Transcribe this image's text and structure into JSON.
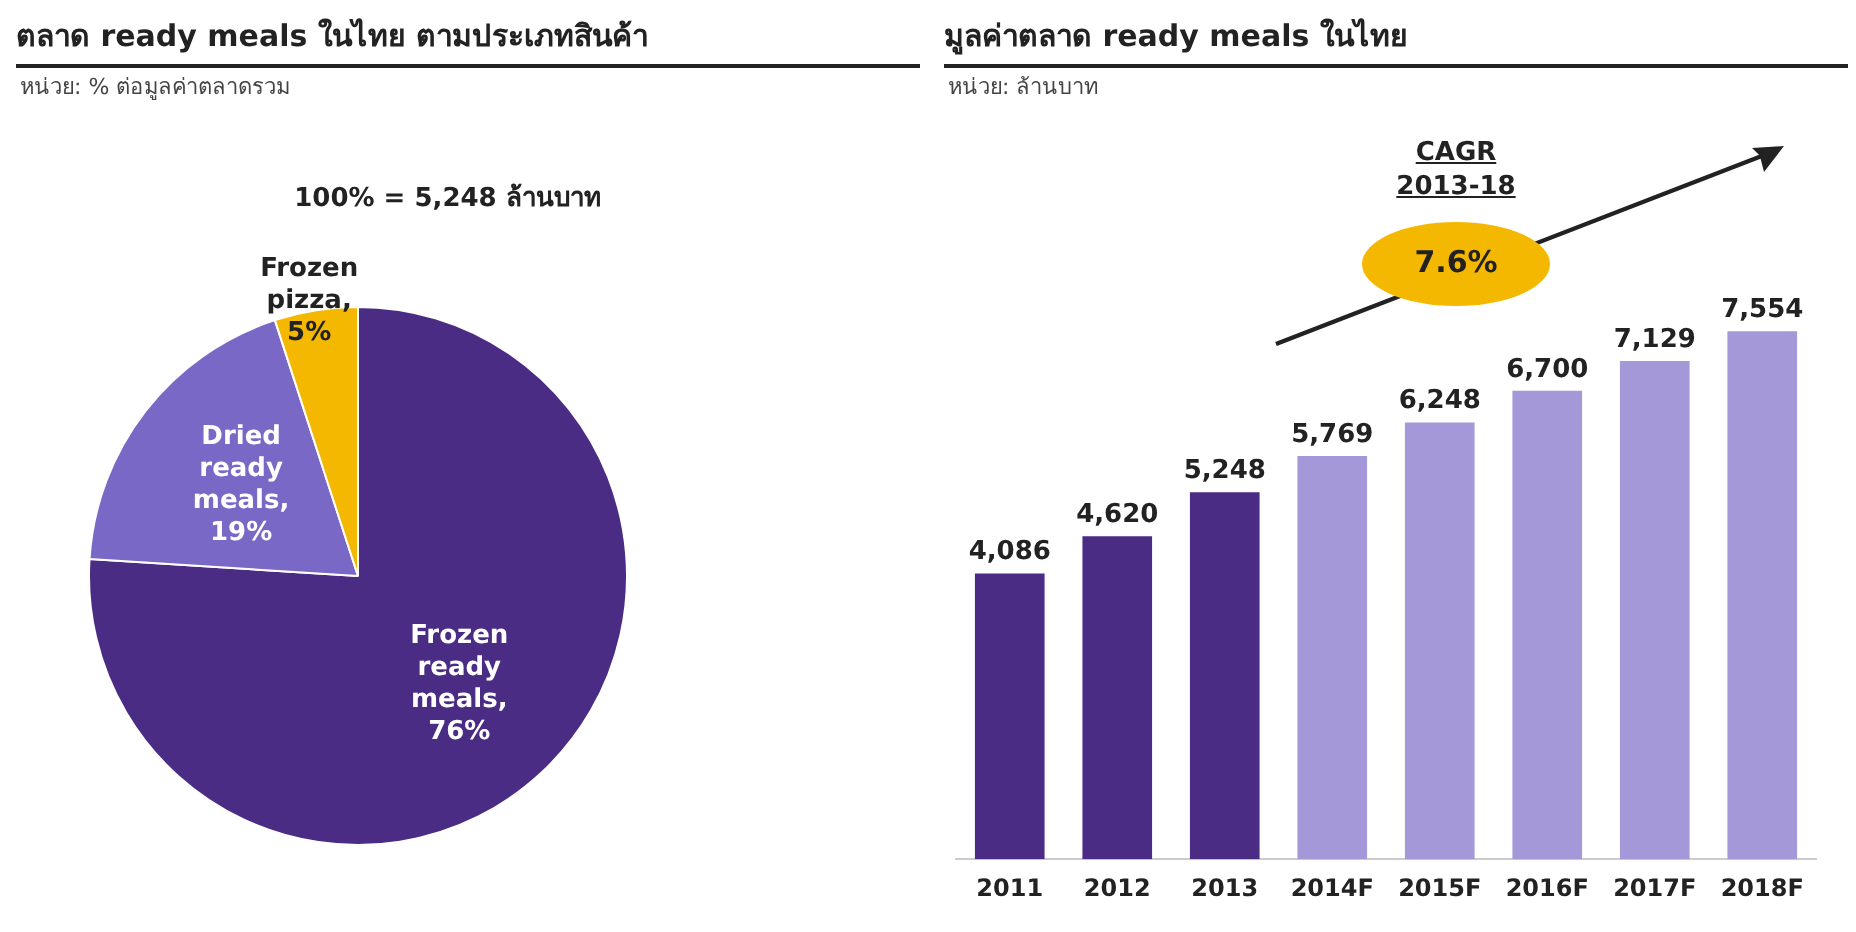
{
  "chart_data": [
    {
      "type": "pie",
      "title": "ตลาด ready meals ในไทย ตามประเภทสินค้า",
      "subtitle": "หน่วย: % ต่อมูลค่าตลาดรวม",
      "annotations": [
        "100% = 5,248 ล้านบาท"
      ],
      "categories": [
        "Frozen ready meals, 76%",
        "Dried ready meals, 19%",
        "Frozen pizza, 5%"
      ],
      "values": [
        76,
        19,
        5
      ],
      "colors": [
        "#4b2c84",
        "#7a68c6",
        "#f5b800"
      ]
    },
    {
      "type": "bar",
      "title": "มูลค่าตลาด ready meals ในไทย",
      "subtitle": "หน่วย: ล้านบาท",
      "annotations": [
        "CAGR 2013-18",
        "7.6%"
      ],
      "categories": [
        "2011",
        "2012",
        "2013",
        "2014F",
        "2015F",
        "2016F",
        "2017F",
        "2018F"
      ],
      "values": [
        4086,
        4620,
        5248,
        5769,
        6248,
        6700,
        7129,
        7554
      ],
      "colors": [
        "#4b2c84",
        "#4b2c84",
        "#4b2c84",
        "#a498d8",
        "#a498d8",
        "#a498d8",
        "#a498d8",
        "#a498d8"
      ],
      "value_labels": [
        "4,086",
        "4,620",
        "5,248",
        "5,769",
        "6,248",
        "6,700",
        "7,129",
        "7,554"
      ],
      "tick_labels": "x"
    }
  ]
}
